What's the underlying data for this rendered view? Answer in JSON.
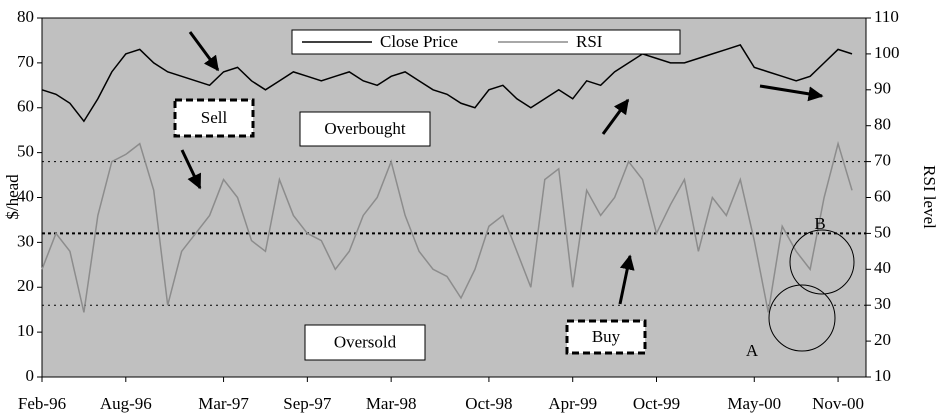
{
  "chart_data": {
    "type": "line",
    "categories": [
      "Feb-96",
      null,
      null,
      null,
      null,
      null,
      "Aug-96",
      null,
      null,
      null,
      null,
      null,
      null,
      "Mar-97",
      null,
      null,
      null,
      null,
      null,
      "Sep-97",
      null,
      null,
      null,
      null,
      null,
      "Mar-98",
      null,
      null,
      null,
      null,
      null,
      null,
      "Oct-98",
      null,
      null,
      null,
      null,
      null,
      "Apr-99",
      null,
      null,
      null,
      null,
      null,
      "Oct-99",
      null,
      null,
      null,
      null,
      null,
      null,
      "May-00",
      null,
      null,
      null,
      null,
      null,
      "Nov-00",
      null
    ],
    "series": [
      {
        "name": "Close Price",
        "color": "#000000",
        "axis": "y",
        "values": [
          64,
          63,
          61,
          57,
          62,
          68,
          72,
          73,
          70,
          68,
          67,
          66,
          65,
          68,
          69,
          66,
          64,
          66,
          68,
          67,
          66,
          67,
          68,
          66,
          65,
          67,
          68,
          66,
          64,
          63,
          61,
          60,
          64,
          65,
          62,
          60,
          62,
          64,
          62,
          66,
          65,
          68,
          70,
          72,
          71,
          70,
          70,
          71,
          72,
          73,
          74,
          69,
          68,
          67,
          66,
          67,
          70,
          73,
          72
        ]
      },
      {
        "name": "RSI",
        "color": "#8c8c8c",
        "axis": "y2",
        "values": [
          40,
          50,
          45,
          28,
          55,
          70,
          72,
          75,
          62,
          30,
          45,
          50,
          55,
          65,
          60,
          48,
          45,
          65,
          55,
          50,
          48,
          40,
          45,
          55,
          60,
          70,
          55,
          45,
          40,
          38,
          32,
          40,
          52,
          55,
          45,
          35,
          65,
          68,
          35,
          62,
          55,
          60,
          70,
          65,
          50,
          58,
          65,
          45,
          60,
          55,
          65,
          48,
          28,
          52,
          45,
          40,
          60,
          75,
          62
        ]
      }
    ],
    "ylabel": "$/head",
    "y2label": "RSI level",
    "ylim": [
      0,
      80
    ],
    "yticks": [
      0,
      10,
      20,
      30,
      40,
      50,
      60,
      70,
      80
    ],
    "y2lim": [
      10,
      110
    ],
    "y2ticks": [
      10,
      20,
      30,
      40,
      50,
      60,
      70,
      80,
      90,
      100,
      110
    ],
    "y2_reference_lines": [
      30,
      50,
      70
    ],
    "annotations": [
      "Sell",
      "Overbought",
      "Oversold",
      "Buy",
      "A",
      "B"
    ],
    "background": "#c0c0c0"
  }
}
